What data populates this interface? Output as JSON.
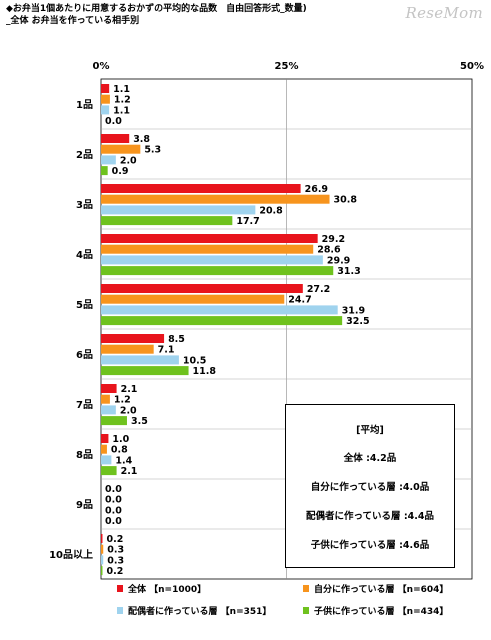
{
  "title": {
    "line1": "◆お弁当1個あたりに用意するおかずの平均的な品数　自由回答形式_数量)",
    "line2": "_全体 お弁当を作っている相手別"
  },
  "watermark": "ReseMom",
  "average_box": {
    "heading": "[平均]",
    "rows": [
      "全体 :4.2品",
      "自分に作っている層 :4.0品",
      "配偶者に作っている層 :4.4品",
      "子供に作っている層 :4.6品"
    ]
  },
  "chart_data": {
    "type": "bar",
    "orientation": "horizontal",
    "categories": [
      "1品",
      "2品",
      "3品",
      "4品",
      "5品",
      "6品",
      "7品",
      "8品",
      "9品",
      "10品以上"
    ],
    "x_ticks": [
      "0%",
      "25%",
      "50%"
    ],
    "xlim": [
      0,
      50
    ],
    "series": [
      {
        "name": "全体 (n=1000)",
        "legend_label": "全体 【n=1000】",
        "color": "#e8141c",
        "values": [
          1.1,
          3.8,
          26.9,
          29.2,
          27.2,
          8.5,
          2.1,
          1.0,
          0.0,
          0.2
        ]
      },
      {
        "name": "自分に作っている層 (n=604)",
        "legend_label": "自分に作っている層 【n=604】",
        "color": "#f7941d",
        "values": [
          1.2,
          5.3,
          30.8,
          28.6,
          24.7,
          7.1,
          1.2,
          0.8,
          0.0,
          0.3
        ]
      },
      {
        "name": "配偶者に作っている層 (n=351)",
        "legend_label": "配偶者に作っている層 【n=351】",
        "color": "#9fd3ee",
        "values": [
          1.1,
          2.0,
          20.8,
          29.9,
          31.9,
          10.5,
          2.0,
          1.4,
          0.0,
          0.3
        ]
      },
      {
        "name": "子供に作っている層 (n=434)",
        "legend_label": "子供に作っている層 【n=434】",
        "color": "#6fc21e",
        "values": [
          0.0,
          0.9,
          17.7,
          31.3,
          32.5,
          11.8,
          3.5,
          2.1,
          0.0,
          0.2
        ]
      }
    ],
    "value_labels": [
      [
        "1.1",
        "1.2",
        "1.1",
        "0.0"
      ],
      [
        "3.8",
        "5.3",
        "2.0",
        "0.9"
      ],
      [
        "26.9",
        "30.8",
        "20.8",
        "17.7"
      ],
      [
        "29.2",
        "28.6",
        "29.9",
        "31.3"
      ],
      [
        "27.2",
        "24.7",
        "31.9",
        "32.5"
      ],
      [
        "8.5",
        "7.1",
        "10.5",
        "11.8"
      ],
      [
        "2.1",
        "1.2",
        "2.0",
        "3.5"
      ],
      [
        "1.0",
        "0.8",
        "1.4",
        "2.1"
      ],
      [
        "0.0",
        "0.0",
        "0.0",
        "0.0"
      ],
      [
        "0.2",
        "0.3",
        "0.3",
        "0.2"
      ]
    ],
    "grid": true,
    "legend_position": "bottom"
  }
}
